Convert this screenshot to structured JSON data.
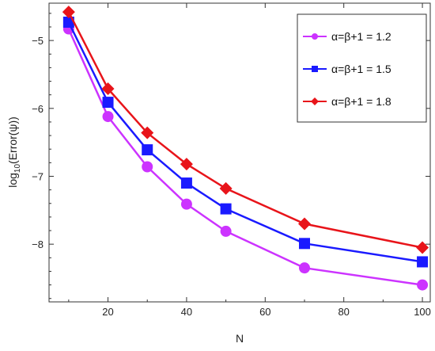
{
  "chart_data": {
    "type": "line",
    "xlabel": "N",
    "ylabel_prefix": "log",
    "ylabel_sub": "10",
    "ylabel_rest": "(Error(ψ))",
    "xlim": [
      5,
      102
    ],
    "ylim": [
      -8.85,
      -4.45
    ],
    "x_ticks": [
      20,
      40,
      60,
      80,
      100
    ],
    "y_ticks": [
      -5,
      -6,
      -7,
      -8
    ],
    "x_tick_labels": [
      "20",
      "40",
      "60",
      "80",
      "100"
    ],
    "y_tick_labels": [
      "−5",
      "−6",
      "−7",
      "−8"
    ],
    "grid": false,
    "legend_position": "top-right",
    "x": [
      10,
      20,
      30,
      40,
      50,
      70,
      100
    ],
    "series": [
      {
        "name": "α=β+1 = 1.2",
        "color": "#cc33ff",
        "marker": "circle",
        "values": [
          -4.83,
          -6.12,
          -6.86,
          -7.41,
          -7.81,
          -8.35,
          -8.6
        ]
      },
      {
        "name": "α=β+1 = 1.5",
        "color": "#1a1aff",
        "marker": "square",
        "values": [
          -4.73,
          -5.91,
          -6.61,
          -7.1,
          -7.48,
          -7.99,
          -8.26
        ]
      },
      {
        "name": "α=β+1 = 1.8",
        "color": "#e8141a",
        "marker": "diamond",
        "values": [
          -4.58,
          -5.71,
          -6.36,
          -6.82,
          -7.18,
          -7.7,
          -8.05
        ]
      }
    ]
  }
}
